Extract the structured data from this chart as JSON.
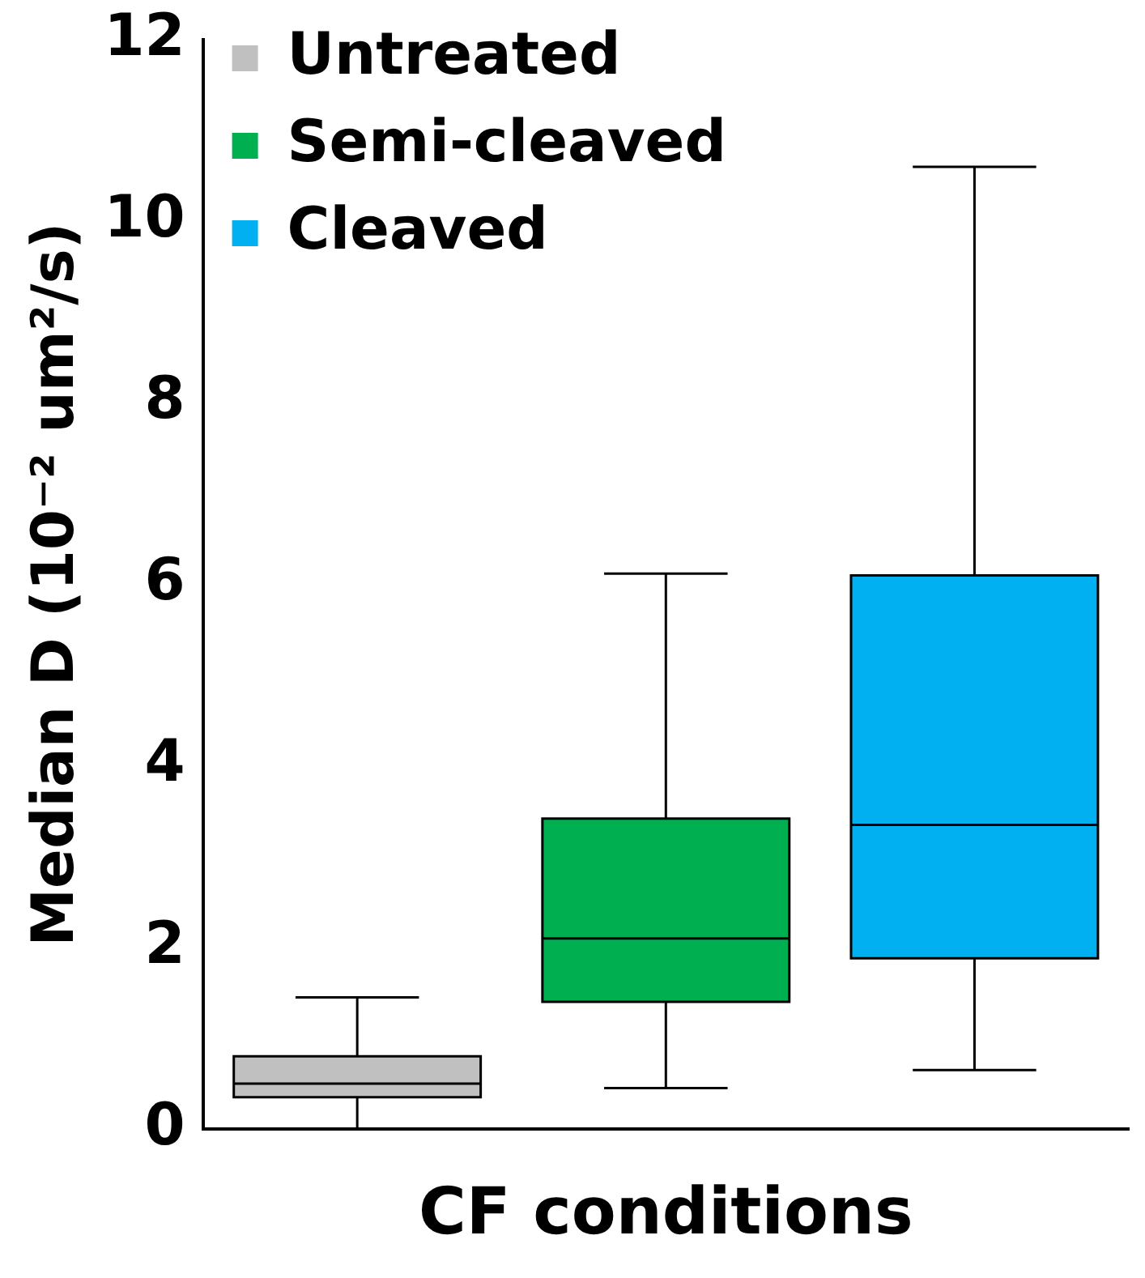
{
  "chart_data": {
    "type": "box",
    "xlabel": "CF conditions",
    "ylabel": "Median D (10⁻² um²/s)",
    "categories": [
      null,
      null,
      null
    ],
    "series": [
      {
        "name": "Untreated",
        "color": "#c0c0c0",
        "boxes": [
          {
            "low": 0,
            "q1": 0.35,
            "median": 0.5,
            "q3": 0.8,
            "high": 1.45
          },
          null,
          null
        ]
      },
      {
        "name": "Semi-cleaved",
        "color": "#00b050",
        "boxes": [
          null,
          {
            "low": 0.45,
            "q1": 1.4,
            "median": 2.1,
            "q3": 3.42,
            "high": 6.12
          },
          null
        ]
      },
      {
        "name": "Cleaved",
        "color": "#00b0f0",
        "boxes": [
          null,
          null,
          {
            "low": 0.65,
            "q1": 1.88,
            "median": 3.35,
            "q3": 6.1,
            "high": 10.6
          }
        ]
      }
    ],
    "ylim": [
      0,
      12
    ],
    "yticks": [
      0,
      2,
      4,
      6,
      8,
      10,
      12
    ],
    "legend": "top left",
    "tick_labels": "y"
  }
}
